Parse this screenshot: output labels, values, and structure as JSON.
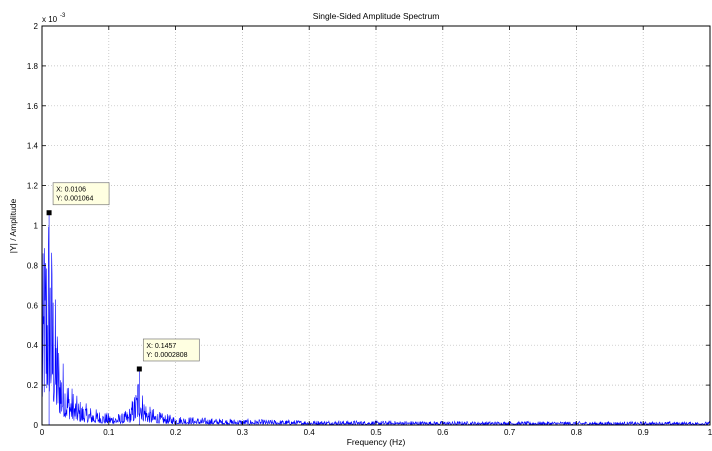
{
  "chart_data": {
    "type": "line",
    "title": "Single-Sided Amplitude Spectrum",
    "xlabel": "Frequency (Hz)",
    "ylabel": "|Y| / Amplitude",
    "xlim": [
      0,
      1
    ],
    "ylim": [
      0,
      0.002
    ],
    "y_exponent_label": "x 10",
    "y_exponent_power": "-3",
    "x_ticks": [
      0,
      0.1,
      0.2,
      0.3,
      0.4,
      0.5,
      0.6,
      0.7,
      0.8,
      0.9,
      1
    ],
    "x_tick_labels": [
      "0",
      "0.1",
      "0.2",
      "0.3",
      "0.4",
      "0.5",
      "0.6",
      "0.7",
      "0.8",
      "0.9",
      "1"
    ],
    "y_ticks": [
      0,
      0.0002,
      0.0004,
      0.0006,
      0.0008,
      0.001,
      0.0012,
      0.0014,
      0.0016,
      0.0018,
      0.002
    ],
    "y_tick_labels": [
      "0",
      "0.2",
      "0.4",
      "0.6",
      "0.8",
      "1",
      "1.2",
      "1.4",
      "1.6",
      "1.8",
      "2"
    ],
    "grid": true,
    "line_color": "#0000ff",
    "series": [
      {
        "x": [
          0,
          0.003,
          0.006,
          0.0106,
          0.015,
          0.02,
          0.025,
          0.03,
          0.04,
          0.05,
          0.06,
          0.08,
          0.1,
          0.12,
          0.13,
          0.14,
          0.1457,
          0.15,
          0.16,
          0.18,
          0.2,
          0.25,
          0.3,
          0.4,
          0.5,
          0.6,
          0.7,
          0.8,
          0.9,
          1
        ],
        "y": [
          0.0005,
          0.0009,
          0.00095,
          0.001064,
          0.0008,
          0.00055,
          0.0004,
          0.0003,
          0.0002,
          0.00013,
          0.0001,
          7e-05,
          5e-05,
          5e-05,
          7e-05,
          0.00015,
          0.0002808,
          0.00015,
          8e-05,
          5e-05,
          4e-05,
          3e-05,
          2.5e-05,
          2e-05,
          1.8e-05,
          1.6e-05,
          1.5e-05,
          1.5e-05,
          1.4e-05,
          1.4e-05
        ]
      }
    ],
    "annotations": [
      {
        "x": 0.0106,
        "y": 0.001064,
        "line1": "X: 0.0106",
        "line2": "Y: 0.001064"
      },
      {
        "x": 0.1457,
        "y": 0.0002808,
        "line1": "X: 0.1457",
        "line2": "Y: 0.0002808"
      }
    ]
  }
}
